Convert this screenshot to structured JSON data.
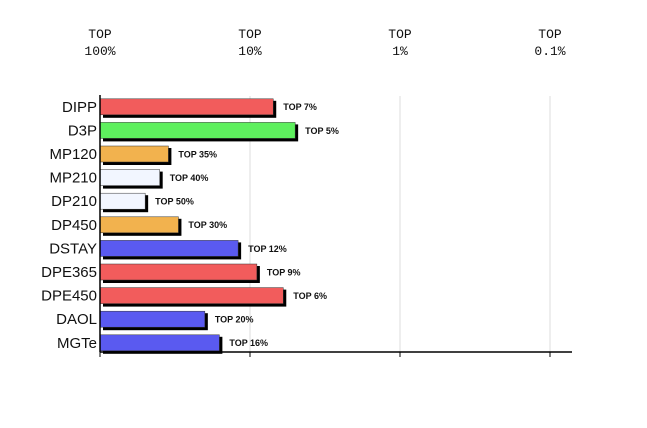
{
  "chart_data": {
    "type": "bar",
    "orientation": "horizontal",
    "log_scale": true,
    "grid": true,
    "categories": [
      "DIPP",
      "D3P",
      "MP120",
      "MP210",
      "DP210",
      "DP450",
      "DSTAY",
      "DPE365",
      "DPE450",
      "DAOL",
      "MGTe"
    ],
    "values": [
      7,
      5,
      35,
      40,
      50,
      30,
      12,
      9,
      6,
      20,
      16
    ],
    "value_labels": [
      "TOP 7%",
      "TOP 5%",
      "TOP 35%",
      "TOP 40%",
      "TOP 50%",
      "TOP 30%",
      "TOP 12%",
      "TOP 9%",
      "TOP 6%",
      "TOP 20%",
      "TOP 16%"
    ],
    "colors": [
      "#f25c5c",
      "#5ef05e",
      "#f2b24e",
      "#f2f6ff",
      "#f2f6ff",
      "#f2b24e",
      "#5a5af0",
      "#f25c5c",
      "#f25c5c",
      "#5a5af0",
      "#5a5af0"
    ],
    "xlim": [
      100,
      0.1
    ],
    "xticks": [
      {
        "value": 100,
        "label": "TOP 100%"
      },
      {
        "value": 10,
        "label": "TOP 10%"
      },
      {
        "value": 1,
        "label": "TOP 1%"
      },
      {
        "value": 0.1,
        "label": "TOP 0.1%"
      }
    ]
  }
}
